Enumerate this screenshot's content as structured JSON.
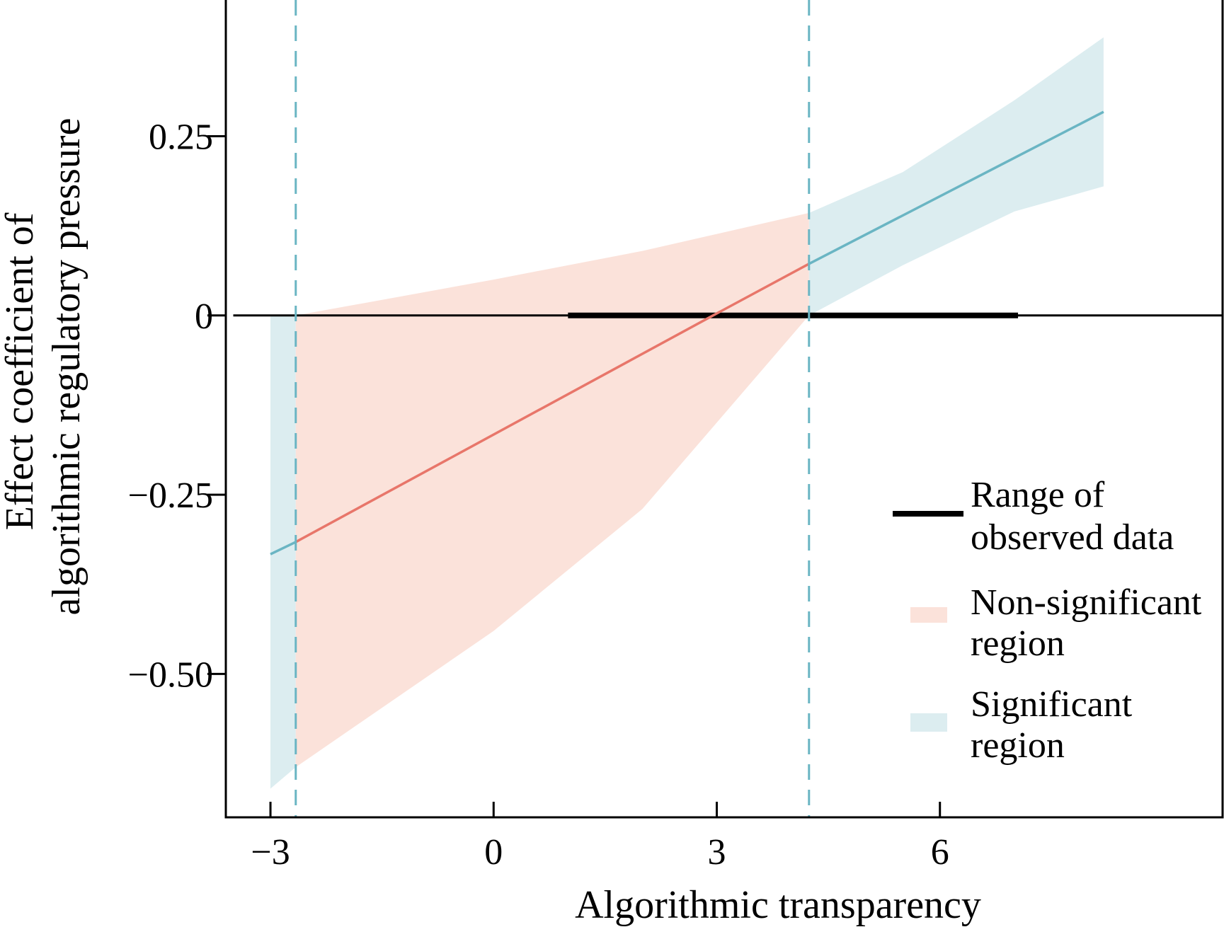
{
  "chart_data": {
    "type": "line",
    "title": "",
    "xlabel": "Algorithmic transparency",
    "ylabel_lines": [
      "Effect coefficient of",
      "algorithmic regulatory pressure"
    ],
    "xlim": [
      -3.6,
      9.8
    ],
    "ylim": [
      -0.7,
      0.44
    ],
    "xticks": [
      -3,
      0,
      3,
      6
    ],
    "xtick_labels": [
      "−3",
      "0",
      "3",
      "6"
    ],
    "yticks": [
      0.25,
      0,
      -0.25,
      -0.5
    ],
    "ytick_labels": [
      "0.25",
      "0",
      "−0.25",
      "−0.50"
    ],
    "grid": false,
    "reference_line_y": 0,
    "johnson_neyman_bounds": [
      -2.66,
      4.24
    ],
    "observed_range": [
      1.0,
      7.05
    ],
    "effect_line": [
      {
        "x": -3.0,
        "y": -0.333
      },
      {
        "x": -2.66,
        "y": -0.316
      },
      {
        "x": 2.95,
        "y": 0.0
      },
      {
        "x": 4.24,
        "y": 0.072
      },
      {
        "x": 8.2,
        "y": 0.284
      }
    ],
    "confidence_band": [
      {
        "x": -3.0,
        "lower": -0.66,
        "upper": 0.0
      },
      {
        "x": -2.66,
        "lower": -0.63,
        "upper": 0.0
      },
      {
        "x": 0.0,
        "lower": -0.44,
        "upper": 0.05
      },
      {
        "x": 2.0,
        "lower": -0.27,
        "upper": 0.09
      },
      {
        "x": 4.24,
        "lower": 0.0,
        "upper": 0.143
      },
      {
        "x": 5.5,
        "lower": 0.07,
        "upper": 0.2
      },
      {
        "x": 7.0,
        "lower": 0.145,
        "upper": 0.3
      },
      {
        "x": 8.2,
        "lower": 0.18,
        "upper": 0.388
      }
    ],
    "legend": {
      "placement": "bottom-right",
      "entries": [
        {
          "label_lines": [
            "Range of",
            "observed data"
          ],
          "kind": "thick-line"
        },
        {
          "label_lines": [
            "Non-significant",
            "region"
          ],
          "kind": "patch-nonsig"
        },
        {
          "label_lines": [
            "Significant",
            "region"
          ],
          "kind": "patch-sig"
        }
      ]
    },
    "colors": {
      "significant_fill": "#dcedf0",
      "significant_line": "#6ab5c3",
      "nonsignificant_fill": "#fbe2da",
      "nonsignificant_line": "#e8766a",
      "dashed_line": "#6ab5c3",
      "axis": "#000000"
    }
  }
}
